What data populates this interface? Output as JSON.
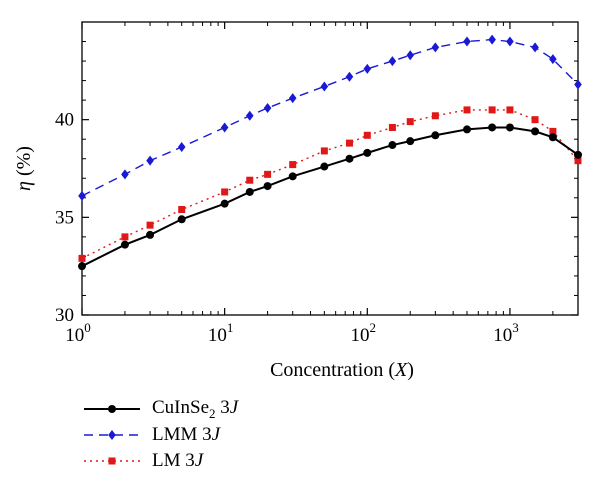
{
  "chart_data": {
    "type": "line",
    "xscale": "log",
    "xlim": [
      1,
      3000
    ],
    "ylim": [
      30,
      45
    ],
    "x_ticks": [
      1,
      10,
      100,
      1000
    ],
    "x_tick_labels": [
      {
        "base": "10",
        "exp": "0"
      },
      {
        "base": "10",
        "exp": "1"
      },
      {
        "base": "10",
        "exp": "2"
      },
      {
        "base": "10",
        "exp": "3"
      }
    ],
    "y_ticks": [
      30,
      35,
      40
    ],
    "y_tick_labels": [
      "30",
      "35",
      "40"
    ],
    "xlabel": {
      "text": "Concentration (",
      "var": "X",
      "close": ")"
    },
    "ylabel": {
      "var": "η",
      "unit": " (%)"
    },
    "grid": false,
    "legend_position": "below",
    "x": [
      1,
      2,
      3,
      5,
      10,
      15,
      20,
      30,
      50,
      75,
      100,
      150,
      200,
      300,
      500,
      750,
      1000,
      1500,
      2000,
      3000
    ],
    "series": [
      {
        "name": "CuInSe2 3J",
        "label_main": "CuInSe",
        "label_sub": "2",
        "label_tail": " 3",
        "label_var": "J",
        "color": "#000000",
        "marker": "circle",
        "dash": "",
        "values": [
          32.5,
          33.6,
          34.1,
          34.9,
          35.7,
          36.3,
          36.6,
          37.1,
          37.6,
          38.0,
          38.3,
          38.7,
          38.9,
          39.2,
          39.5,
          39.6,
          39.6,
          39.4,
          39.1,
          38.2
        ]
      },
      {
        "name": "LMM 3J",
        "label_main": "LMM",
        "label_sub": "",
        "label_tail": " 3",
        "label_var": "J",
        "color": "#1a1ad6",
        "marker": "diamond",
        "dash": "9,6",
        "values": [
          36.1,
          37.2,
          37.9,
          38.6,
          39.6,
          40.2,
          40.6,
          41.1,
          41.7,
          42.2,
          42.6,
          43.0,
          43.3,
          43.7,
          44.0,
          44.1,
          44.0,
          43.7,
          43.1,
          41.8
        ]
      },
      {
        "name": "LM 3J",
        "label_main": "LM",
        "label_sub": "",
        "label_tail": " 3",
        "label_var": "J",
        "color": "#e01818",
        "marker": "square",
        "dash": "2,4",
        "values": [
          32.9,
          34.0,
          34.6,
          35.4,
          36.3,
          36.9,
          37.2,
          37.7,
          38.4,
          38.8,
          39.2,
          39.6,
          39.9,
          40.2,
          40.5,
          40.5,
          40.5,
          40.0,
          39.4,
          37.9
        ]
      }
    ]
  }
}
